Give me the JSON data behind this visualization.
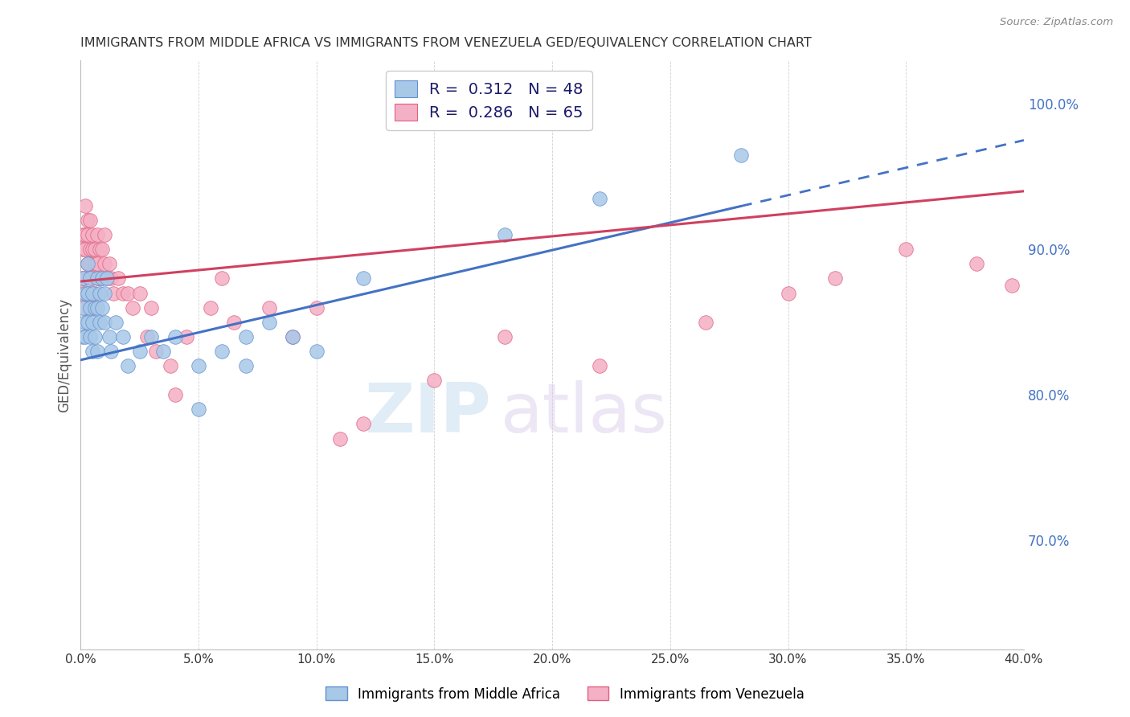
{
  "title": "IMMIGRANTS FROM MIDDLE AFRICA VS IMMIGRANTS FROM VENEZUELA GED/EQUIVALENCY CORRELATION CHART",
  "source": "Source: ZipAtlas.com",
  "ylabel": "GED/Equivalency",
  "ylabel_right_labels": [
    "70.0%",
    "80.0%",
    "90.0%",
    "100.0%"
  ],
  "ylabel_right_values": [
    0.7,
    0.8,
    0.9,
    1.0
  ],
  "xmin": 0.0,
  "xmax": 0.4,
  "ymin": 0.625,
  "ymax": 1.03,
  "r_africa": 0.312,
  "n_africa": 48,
  "r_venezuela": 0.286,
  "n_venezuela": 65,
  "color_africa_fill": "#a8c8e8",
  "color_venezuela_fill": "#f4b0c4",
  "color_africa_edge": "#6090d0",
  "color_venezuela_edge": "#e06080",
  "color_africa_line": "#4472c4",
  "color_venezuela_line": "#d04060",
  "watermark_zip": "ZIP",
  "watermark_atlas": "atlas",
  "africa_x": [
    0.001,
    0.001,
    0.001,
    0.002,
    0.002,
    0.002,
    0.003,
    0.003,
    0.003,
    0.004,
    0.004,
    0.004,
    0.005,
    0.005,
    0.005,
    0.006,
    0.006,
    0.007,
    0.007,
    0.007,
    0.008,
    0.008,
    0.009,
    0.009,
    0.01,
    0.01,
    0.011,
    0.012,
    0.013,
    0.015,
    0.018,
    0.02,
    0.025,
    0.03,
    0.035,
    0.04,
    0.05,
    0.06,
    0.07,
    0.08,
    0.09,
    0.1,
    0.05,
    0.07,
    0.12,
    0.18,
    0.22,
    0.28
  ],
  "africa_y": [
    0.88,
    0.86,
    0.84,
    0.87,
    0.85,
    0.84,
    0.89,
    0.87,
    0.85,
    0.88,
    0.86,
    0.84,
    0.87,
    0.85,
    0.83,
    0.86,
    0.84,
    0.88,
    0.86,
    0.83,
    0.87,
    0.85,
    0.88,
    0.86,
    0.87,
    0.85,
    0.88,
    0.84,
    0.83,
    0.85,
    0.84,
    0.82,
    0.83,
    0.84,
    0.83,
    0.84,
    0.82,
    0.83,
    0.84,
    0.85,
    0.84,
    0.83,
    0.79,
    0.82,
    0.88,
    0.91,
    0.935,
    0.965
  ],
  "venezuela_x": [
    0.001,
    0.001,
    0.001,
    0.001,
    0.002,
    0.002,
    0.002,
    0.002,
    0.002,
    0.003,
    0.003,
    0.003,
    0.003,
    0.004,
    0.004,
    0.004,
    0.004,
    0.005,
    0.005,
    0.005,
    0.005,
    0.006,
    0.006,
    0.006,
    0.007,
    0.007,
    0.007,
    0.008,
    0.008,
    0.009,
    0.009,
    0.01,
    0.01,
    0.011,
    0.012,
    0.013,
    0.014,
    0.016,
    0.018,
    0.02,
    0.022,
    0.025,
    0.028,
    0.032,
    0.038,
    0.045,
    0.055,
    0.065,
    0.08,
    0.1,
    0.12,
    0.15,
    0.18,
    0.22,
    0.265,
    0.3,
    0.32,
    0.35,
    0.38,
    0.395,
    0.03,
    0.04,
    0.06,
    0.09,
    0.11
  ],
  "venezuela_y": [
    0.91,
    0.9,
    0.88,
    0.87,
    0.93,
    0.91,
    0.9,
    0.88,
    0.86,
    0.92,
    0.91,
    0.89,
    0.87,
    0.92,
    0.9,
    0.89,
    0.87,
    0.91,
    0.9,
    0.88,
    0.86,
    0.9,
    0.89,
    0.87,
    0.91,
    0.89,
    0.88,
    0.9,
    0.88,
    0.9,
    0.88,
    0.91,
    0.89,
    0.88,
    0.89,
    0.88,
    0.87,
    0.88,
    0.87,
    0.87,
    0.86,
    0.87,
    0.84,
    0.83,
    0.82,
    0.84,
    0.86,
    0.85,
    0.86,
    0.86,
    0.78,
    0.81,
    0.84,
    0.82,
    0.85,
    0.87,
    0.88,
    0.9,
    0.89,
    0.875,
    0.86,
    0.8,
    0.88,
    0.84,
    0.77
  ],
  "line_africa_x0": 0.0,
  "line_africa_y0": 0.824,
  "line_africa_x1": 0.4,
  "line_africa_y1": 0.975,
  "line_africa_solid_end": 0.28,
  "line_venezuela_x0": 0.0,
  "line_venezuela_y0": 0.878,
  "line_venezuela_x1": 0.4,
  "line_venezuela_y1": 0.94
}
